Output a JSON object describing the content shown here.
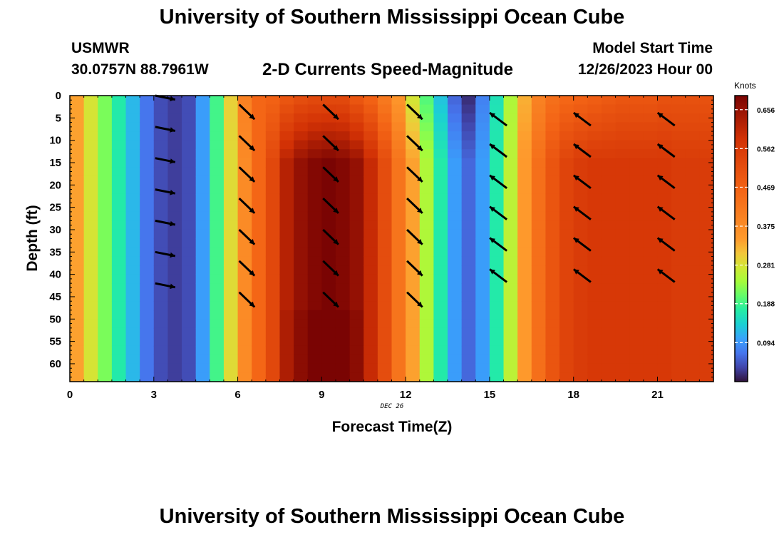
{
  "header": {
    "title": "University of Southern Mississippi Ocean Cube",
    "station": "USMWR",
    "coordinates": "30.0757N  88.7961W",
    "subtitle": "2-D Currents Speed-Magnitude",
    "model_start_label": "Model Start Time",
    "model_start_value": "12/26/2023 Hour 00"
  },
  "footer": {
    "title": "University of Southern Mississippi Ocean Cube"
  },
  "chart_data": {
    "type": "heatmap",
    "title": "2-D Currents Speed-Magnitude",
    "xlabel": "Forecast Time(Z)",
    "ylabel": "Depth (ft)",
    "date_label": "DEC 26",
    "xlim": [
      0,
      23
    ],
    "ylim": [
      0,
      64
    ],
    "y_inverted": true,
    "xticks": [
      0,
      3,
      6,
      9,
      12,
      15,
      18,
      21
    ],
    "yticks": [
      0,
      5,
      10,
      15,
      20,
      25,
      30,
      35,
      40,
      45,
      50,
      55,
      60
    ],
    "colorbar": {
      "label": "Knots",
      "min": 0.0,
      "max": 0.69,
      "ticks": [
        0.094,
        0.188,
        0.281,
        0.375,
        0.469,
        0.562,
        0.656
      ]
    },
    "speed_by_half_hour": [
      0.34,
      0.28,
      0.22,
      0.17,
      0.12,
      0.07,
      0.04,
      0.03,
      0.04,
      0.1,
      0.19,
      0.29,
      0.38,
      0.46,
      0.53,
      0.62,
      0.66,
      0.68,
      0.69,
      0.68,
      0.66,
      0.6,
      0.52,
      0.43,
      0.34,
      0.25,
      0.17,
      0.1,
      0.06,
      0.1,
      0.17,
      0.26,
      0.35,
      0.44,
      0.5,
      0.54,
      0.56,
      0.57,
      0.57,
      0.57,
      0.57,
      0.57,
      0.57,
      0.56,
      0.56,
      0.56
    ],
    "surface_speed_by_half_hour": [
      0.34,
      0.28,
      0.22,
      0.17,
      0.12,
      0.07,
      0.04,
      0.03,
      0.04,
      0.1,
      0.19,
      0.3,
      0.4,
      0.46,
      0.47,
      0.5,
      0.52,
      0.53,
      0.53,
      0.53,
      0.5,
      0.47,
      0.42,
      0.36,
      0.28,
      0.2,
      0.13,
      0.06,
      0.02,
      0.08,
      0.16,
      0.25,
      0.33,
      0.4,
      0.44,
      0.46,
      0.47,
      0.48,
      0.49,
      0.5,
      0.5,
      0.5,
      0.51,
      0.51,
      0.51,
      0.51
    ],
    "vectors": [
      {
        "hour": 3,
        "direction": "E",
        "depths": [
          0,
          7,
          14,
          21,
          28,
          35,
          42
        ]
      },
      {
        "hour": 6,
        "direction": "SE",
        "depths": [
          2,
          9,
          16,
          23,
          30,
          37,
          44
        ]
      },
      {
        "hour": 9,
        "direction": "SE",
        "depths": [
          2,
          9,
          16,
          23,
          30,
          37,
          44
        ]
      },
      {
        "hour": 12,
        "direction": "SE",
        "depths": [
          2,
          9,
          16,
          23,
          30,
          37,
          44
        ]
      },
      {
        "hour": 15,
        "direction": "NW",
        "depths": [
          5,
          12,
          19,
          26,
          33,
          40
        ]
      },
      {
        "hour": 18,
        "direction": "NW",
        "depths": [
          5,
          12,
          19,
          26,
          33,
          40
        ]
      },
      {
        "hour": 21,
        "direction": "NW",
        "depths": [
          5,
          12,
          19,
          26,
          33,
          40
        ]
      }
    ]
  }
}
